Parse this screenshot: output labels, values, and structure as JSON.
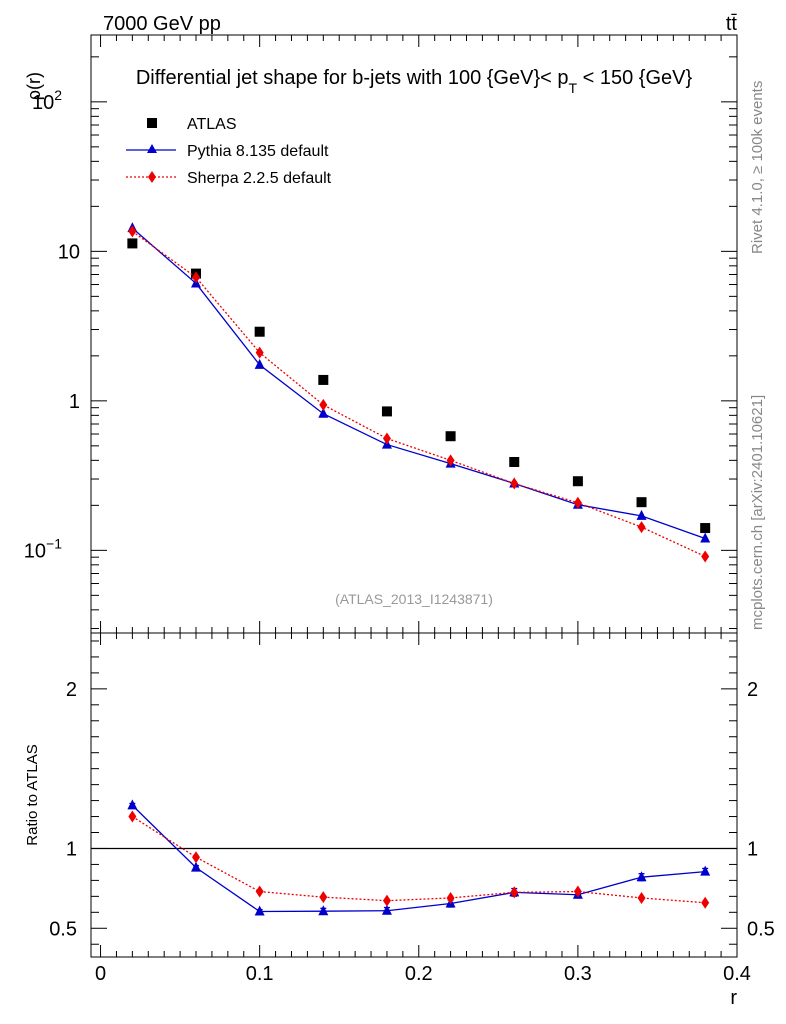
{
  "header": {
    "energy_label": "7000 GeV pp",
    "process_label": "tt̄",
    "side_label_rivet": "Rivet 4.1.0, ≥ 100k events",
    "side_label_mcplots": "mcplots.cern.ch [arXiv:2401.10621]"
  },
  "chart_data": [
    {
      "type": "scatter",
      "title": "Differential jet shape for b-jets with 100 {GeV}< p_T < 150 {GeV}",
      "title_parts": {
        "prefix": "Differential jet shape for b-jets with 100 {GeV}< p",
        "subscript": "T",
        "suffix": " < 150 {GeV}"
      },
      "ylabel": "ρ(r)",
      "xlabel": "",
      "yscale": "log",
      "ylim": [
        0.028,
        280
      ],
      "xlim": [
        -0.006,
        0.4
      ],
      "y_ticks": [
        {
          "value": 0.1,
          "label": "10",
          "exp": "−1"
        },
        {
          "value": 1,
          "label": "1",
          "exp": ""
        },
        {
          "value": 10,
          "label": "10",
          "exp": ""
        },
        {
          "value": 100,
          "label": "10",
          "exp": "2"
        }
      ],
      "watermark": "(ATLAS_2013_I1243871)",
      "x": [
        0.02,
        0.06,
        0.1,
        0.14,
        0.18,
        0.22,
        0.26,
        0.3,
        0.34,
        0.38
      ],
      "series": [
        {
          "name": "ATLAS",
          "marker": "square",
          "color": "#000000",
          "values": [
            11.3,
            7.1,
            2.9,
            1.38,
            0.85,
            0.58,
            0.39,
            0.29,
            0.21,
            0.141
          ]
        },
        {
          "name": "Pythia 8.135 default",
          "marker": "triangle",
          "color": "#0000cc",
          "line": "solid",
          "values": [
            14.3,
            6.1,
            1.74,
            0.82,
            0.51,
            0.38,
            0.28,
            0.202,
            0.17,
            0.12
          ]
        },
        {
          "name": "Sherpa 2.2.5 default",
          "marker": "diamond",
          "color": "#ee0000",
          "line": "dotted",
          "values": [
            13.6,
            6.7,
            2.1,
            0.94,
            0.56,
            0.4,
            0.28,
            0.208,
            0.143,
            0.091
          ]
        }
      ]
    },
    {
      "type": "line",
      "title": "",
      "ylabel": "Ratio to ATLAS",
      "xlabel": "r",
      "ylim": [
        0.32,
        2.35
      ],
      "xlim": [
        -0.006,
        0.4
      ],
      "y_ticks": [
        0.5,
        1,
        2
      ],
      "y_tick_labels": [
        "0.5",
        "1",
        "2"
      ],
      "x_ticks": [
        0,
        0.1,
        0.2,
        0.3,
        0.4
      ],
      "x_tick_labels": [
        "0",
        "0.1",
        "0.2",
        "0.3",
        "0.4"
      ],
      "reference_line": 1,
      "x": [
        0.02,
        0.06,
        0.1,
        0.14,
        0.18,
        0.22,
        0.26,
        0.3,
        0.34,
        0.38
      ],
      "series": [
        {
          "name": "Pythia 8.135 default",
          "marker": "triangle",
          "color": "#0000cc",
          "line": "solid",
          "values": [
            1.27,
            0.88,
            0.605,
            0.607,
            0.61,
            0.655,
            0.725,
            0.71,
            0.82,
            0.855
          ],
          "errors": [
            0.012,
            0.012,
            0.012,
            0.018,
            0.02,
            0.022,
            0.024,
            0.02,
            0.022,
            0.02
          ]
        },
        {
          "name": "Sherpa 2.2.5 default",
          "marker": "diamond",
          "color": "#ee0000",
          "line": "dotted",
          "values": [
            1.2,
            0.945,
            0.73,
            0.695,
            0.673,
            0.69,
            0.725,
            0.73,
            0.69,
            0.66
          ],
          "errors": [
            0,
            0,
            0,
            0,
            0,
            0,
            0,
            0,
            0,
            0
          ]
        }
      ]
    }
  ]
}
